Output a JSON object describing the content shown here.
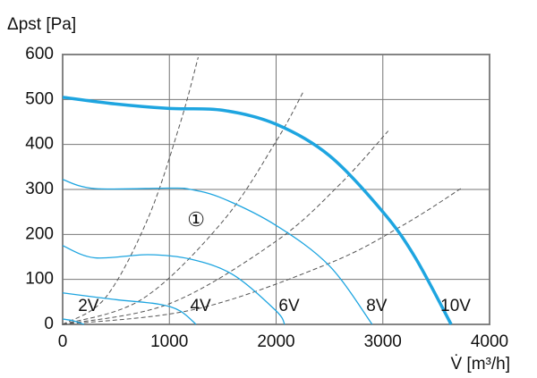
{
  "chart_data": {
    "type": "line",
    "y_label": "Δpst [Pa]",
    "x_label": "V̇ [m³/h]",
    "xlim": [
      0,
      4000
    ],
    "xticks": [
      0,
      1000,
      2000,
      3000,
      4000
    ],
    "ylim": [
      0,
      600
    ],
    "yticks": [
      0,
      100,
      200,
      300,
      400,
      500,
      600
    ],
    "grid": true,
    "series": [
      {
        "name": "10V",
        "color": "#1ea5e0",
        "line_width": 3.5,
        "x": [
          0,
          500,
          1000,
          1500,
          2000,
          2500,
          3000,
          3300,
          3640
        ],
        "values": [
          505,
          490,
          480,
          476,
          445,
          375,
          250,
          150,
          0
        ]
      },
      {
        "name": "8V",
        "color": "#1ea5e0",
        "line_width": 1.3,
        "x": [
          0,
          300,
          1000,
          1200,
          1500,
          2000,
          2500,
          2900
        ],
        "values": [
          322,
          302,
          303,
          300,
          280,
          220,
          130,
          0
        ]
      },
      {
        "name": "6V",
        "color": "#1ea5e0",
        "line_width": 1.3,
        "x": [
          0,
          300,
          800,
          1200,
          1600,
          2000,
          2080
        ],
        "values": [
          175,
          148,
          155,
          145,
          110,
          30,
          0
        ]
      },
      {
        "name": "4V",
        "color": "#1ea5e0",
        "line_width": 1.3,
        "x": [
          0,
          500,
          900,
          1100,
          1250
        ],
        "values": [
          70,
          55,
          45,
          30,
          0
        ]
      },
      {
        "name": "2V",
        "color": "#1ea5e0",
        "line_width": 1.3,
        "x": [
          0,
          100,
          200
        ],
        "values": [
          12,
          8,
          0
        ]
      }
    ],
    "system_curves": {
      "color": "#555555",
      "curves": [
        {
          "x": [
            0,
            400,
            800,
            1100,
            1270
          ],
          "values": [
            0,
            59,
            236,
            446,
            594
          ]
        },
        {
          "x": [
            0,
            750,
            1500,
            2000,
            2250
          ],
          "values": [
            0,
            57,
            229,
            407,
            515
          ]
        },
        {
          "x": [
            0,
            1000,
            2000,
            2600,
            3050
          ],
          "values": [
            0,
            46,
            185,
            312,
            430
          ]
        },
        {
          "x": [
            0,
            1250,
            2500,
            3200,
            3750
          ],
          "values": [
            0,
            34,
            136,
            222,
            305
          ]
        }
      ]
    },
    "annotations": [
      {
        "text": "①",
        "x": 1250,
        "y": 230
      }
    ]
  }
}
